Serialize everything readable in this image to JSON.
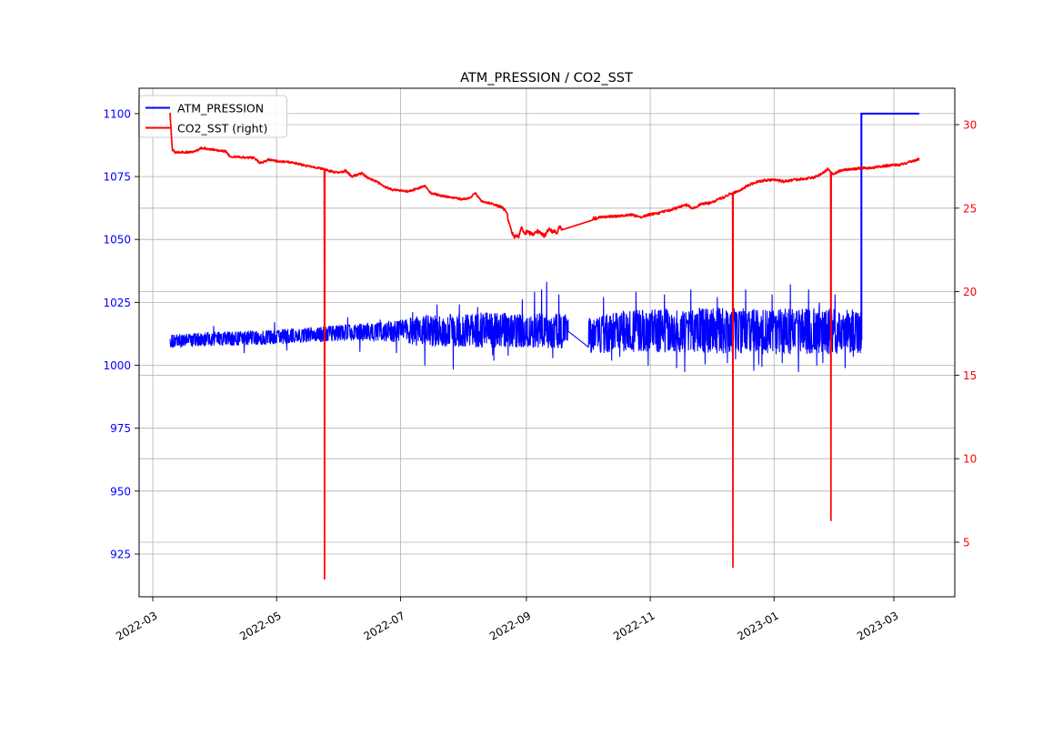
{
  "chart_data": {
    "type": "line",
    "title": "ATM_PRESSION / CO2_SST",
    "background": "#ffffff",
    "grid": {
      "on": true,
      "color": "#b0b0b0",
      "width": 0.8
    },
    "spine_color": "#000000",
    "x_axis": {
      "epoch": "2022-03-01",
      "tick_t": [
        0,
        61,
        122,
        184,
        245,
        306,
        365
      ],
      "tick_labels": [
        "2022-03",
        "2022-05",
        "2022-07",
        "2022-09",
        "2022-11",
        "2023-01",
        "2023-03"
      ],
      "label_rotation_deg": 30,
      "domain_t": [
        -6.718,
        394.99
      ],
      "tick_color": "#000000"
    },
    "left_axis": {
      "ticks": [
        925,
        950,
        975,
        1000,
        1025,
        1050,
        1075,
        1100
      ],
      "domain": [
        908.0,
        1110.1
      ],
      "label_color": "#0000ff"
    },
    "right_axis": {
      "ticks": [
        5,
        10,
        15,
        20,
        25,
        30
      ],
      "domain": [
        1.73,
        32.18
      ],
      "label_color": "#ff0000"
    },
    "legend": {
      "position": "upper left",
      "entries": [
        {
          "label": "ATM_PRESSION",
          "color": "#0000ff"
        },
        {
          "label": "CO2_SST (right)",
          "color": "#ff0000"
        }
      ]
    },
    "series": [
      {
        "name": "ATM_PRESSION",
        "axis": "left",
        "color": "#0000ff",
        "kind": "noisy_band",
        "step_days": 0.15,
        "start_t": 8.5,
        "end_t": 349,
        "gap_t": [
          204.6,
          214.5
        ],
        "mean_keyframes": [
          [
            8.5,
            1009.5
          ],
          [
            30,
            1010.5
          ],
          [
            55,
            1011
          ],
          [
            75,
            1012
          ],
          [
            95,
            1013
          ],
          [
            120,
            1013.5
          ],
          [
            150,
            1014
          ],
          [
            185,
            1014
          ],
          [
            204.6,
            1013.5
          ],
          [
            214.5,
            1012
          ],
          [
            230,
            1013.5
          ],
          [
            260,
            1014
          ],
          [
            300,
            1013.5
          ],
          [
            349,
            1013.5
          ]
        ],
        "amp_keyframes": [
          [
            8.5,
            2.6
          ],
          [
            60,
            2.8
          ],
          [
            100,
            3.2
          ],
          [
            122,
            4.5
          ],
          [
            132,
            6.2
          ],
          [
            160,
            6.8
          ],
          [
            204.6,
            6.8
          ],
          [
            214.5,
            7.5
          ],
          [
            245,
            8.5
          ],
          [
            280,
            9
          ],
          [
            349,
            9
          ]
        ],
        "spikes": [
          [
            30,
            1015.5
          ],
          [
            45,
            1005
          ],
          [
            60,
            1017
          ],
          [
            66,
            1006
          ],
          [
            96,
            1019
          ],
          [
            102,
            1005.5
          ],
          [
            112,
            1018
          ],
          [
            120,
            1005
          ],
          [
            128,
            1021
          ],
          [
            134,
            1000
          ],
          [
            140,
            1024
          ],
          [
            148,
            998.5
          ],
          [
            151,
            1024
          ],
          [
            160,
            1023
          ],
          [
            168,
            1002
          ],
          [
            175,
            1004
          ],
          [
            182,
            1026
          ],
          [
            188,
            1029
          ],
          [
            191.5,
            1030
          ],
          [
            194,
            1033
          ],
          [
            197,
            1003
          ],
          [
            200,
            1028
          ],
          [
            222,
            1027
          ],
          [
            226,
            1002
          ],
          [
            230,
            1003.5
          ],
          [
            238,
            1029
          ],
          [
            244,
            1000
          ],
          [
            252,
            1028
          ],
          [
            258,
            999
          ],
          [
            262,
            997.5
          ],
          [
            265,
            1030
          ],
          [
            272,
            1000.5
          ],
          [
            278,
            1027
          ],
          [
            283,
            1001
          ],
          [
            287,
            1002.5
          ],
          [
            292,
            1030
          ],
          [
            296,
            998
          ],
          [
            300,
            999.5
          ],
          [
            305,
            1028
          ],
          [
            310,
            1001
          ],
          [
            314,
            1032
          ],
          [
            318,
            997.5
          ],
          [
            323,
            1030
          ],
          [
            327,
            1000
          ],
          [
            330,
            1001
          ],
          [
            336,
            1028
          ],
          [
            341,
            999
          ],
          [
            345,
            1003.5
          ]
        ],
        "terminal": {
          "jump_t": 349,
          "value": 1100,
          "hold_until_t": 377.5
        }
      },
      {
        "name": "CO2_SST (right)",
        "axis": "right",
        "color": "#ff0000",
        "kind": "noisy_line",
        "step_days": 0.2,
        "start_t": 8.5,
        "end_t": 377.5,
        "gap_t": [
          201.5,
          216.5
        ],
        "keyframes": [
          [
            8.5,
            30.76
          ],
          [
            9.6,
            28.5
          ],
          [
            11,
            28.35
          ],
          [
            20,
            28.35
          ],
          [
            24,
            28.6
          ],
          [
            27,
            28.55
          ],
          [
            33,
            28.45
          ],
          [
            36,
            28.4
          ],
          [
            38,
            28.1
          ],
          [
            44,
            28.05
          ],
          [
            50,
            28.0
          ],
          [
            53,
            27.7
          ],
          [
            57,
            27.9
          ],
          [
            62,
            27.8
          ],
          [
            68,
            27.75
          ],
          [
            75,
            27.55
          ],
          [
            80,
            27.45
          ],
          [
            84,
            27.35
          ],
          [
            88,
            27.2
          ],
          [
            92,
            27.1
          ],
          [
            95,
            27.25
          ],
          [
            98,
            26.9
          ],
          [
            101,
            27.0
          ],
          [
            103,
            27.1
          ],
          [
            106,
            26.8
          ],
          [
            110,
            26.6
          ],
          [
            114,
            26.3
          ],
          [
            118,
            26.1
          ],
          [
            122,
            26.05
          ],
          [
            126,
            26.0
          ],
          [
            131,
            26.2
          ],
          [
            134,
            26.35
          ],
          [
            137,
            25.9
          ],
          [
            142,
            25.75
          ],
          [
            147,
            25.65
          ],
          [
            152,
            25.55
          ],
          [
            156,
            25.6
          ],
          [
            159,
            25.9
          ],
          [
            162,
            25.4
          ],
          [
            166,
            25.3
          ],
          [
            170,
            25.15
          ],
          [
            174,
            24.9
          ],
          [
            176,
            23.8
          ],
          [
            178,
            23.3
          ],
          [
            180,
            23.25
          ],
          [
            181.5,
            23.9
          ],
          [
            183,
            23.5
          ],
          [
            185,
            23.55
          ],
          [
            187,
            23.4
          ],
          [
            189,
            23.65
          ],
          [
            191,
            23.5
          ],
          [
            193,
            23.35
          ],
          [
            195,
            23.75
          ],
          [
            197,
            23.6
          ],
          [
            199,
            23.5
          ],
          [
            200.5,
            23.9
          ],
          [
            201.5,
            23.7
          ],
          [
            216.5,
            24.35
          ],
          [
            218,
            24.4
          ],
          [
            221,
            24.45
          ],
          [
            226,
            24.5
          ],
          [
            231,
            24.55
          ],
          [
            236,
            24.6
          ],
          [
            240,
            24.45
          ],
          [
            244,
            24.6
          ],
          [
            249,
            24.7
          ],
          [
            254,
            24.85
          ],
          [
            259,
            25.05
          ],
          [
            263,
            25.2
          ],
          [
            266,
            24.95
          ],
          [
            270,
            25.25
          ],
          [
            274,
            25.3
          ],
          [
            278,
            25.5
          ],
          [
            282,
            25.7
          ],
          [
            284,
            25.85
          ],
          [
            286,
            25.9
          ],
          [
            289,
            26.05
          ],
          [
            293,
            26.35
          ],
          [
            297,
            26.55
          ],
          [
            301,
            26.65
          ],
          [
            306,
            26.7
          ],
          [
            311,
            26.6
          ],
          [
            316,
            26.7
          ],
          [
            321,
            26.75
          ],
          [
            326,
            26.85
          ],
          [
            330,
            27.1
          ],
          [
            332.5,
            27.35
          ],
          [
            335,
            27.0
          ],
          [
            337,
            27.15
          ],
          [
            340,
            27.3
          ],
          [
            345,
            27.35
          ],
          [
            350,
            27.4
          ],
          [
            356,
            27.45
          ],
          [
            362,
            27.55
          ],
          [
            368,
            27.6
          ],
          [
            372,
            27.75
          ],
          [
            375,
            27.85
          ],
          [
            377.5,
            27.95
          ]
        ],
        "noise_keyframes": [
          [
            8.5,
            0.06
          ],
          [
            170,
            0.06
          ],
          [
            176,
            0.14
          ],
          [
            216,
            0.12
          ],
          [
            222,
            0.07
          ],
          [
            377.5,
            0.07
          ]
        ],
        "spikes": [
          [
            84.6,
            2.8
          ],
          [
            285.7,
            3.5
          ],
          [
            334,
            6.3
          ]
        ]
      }
    ]
  }
}
